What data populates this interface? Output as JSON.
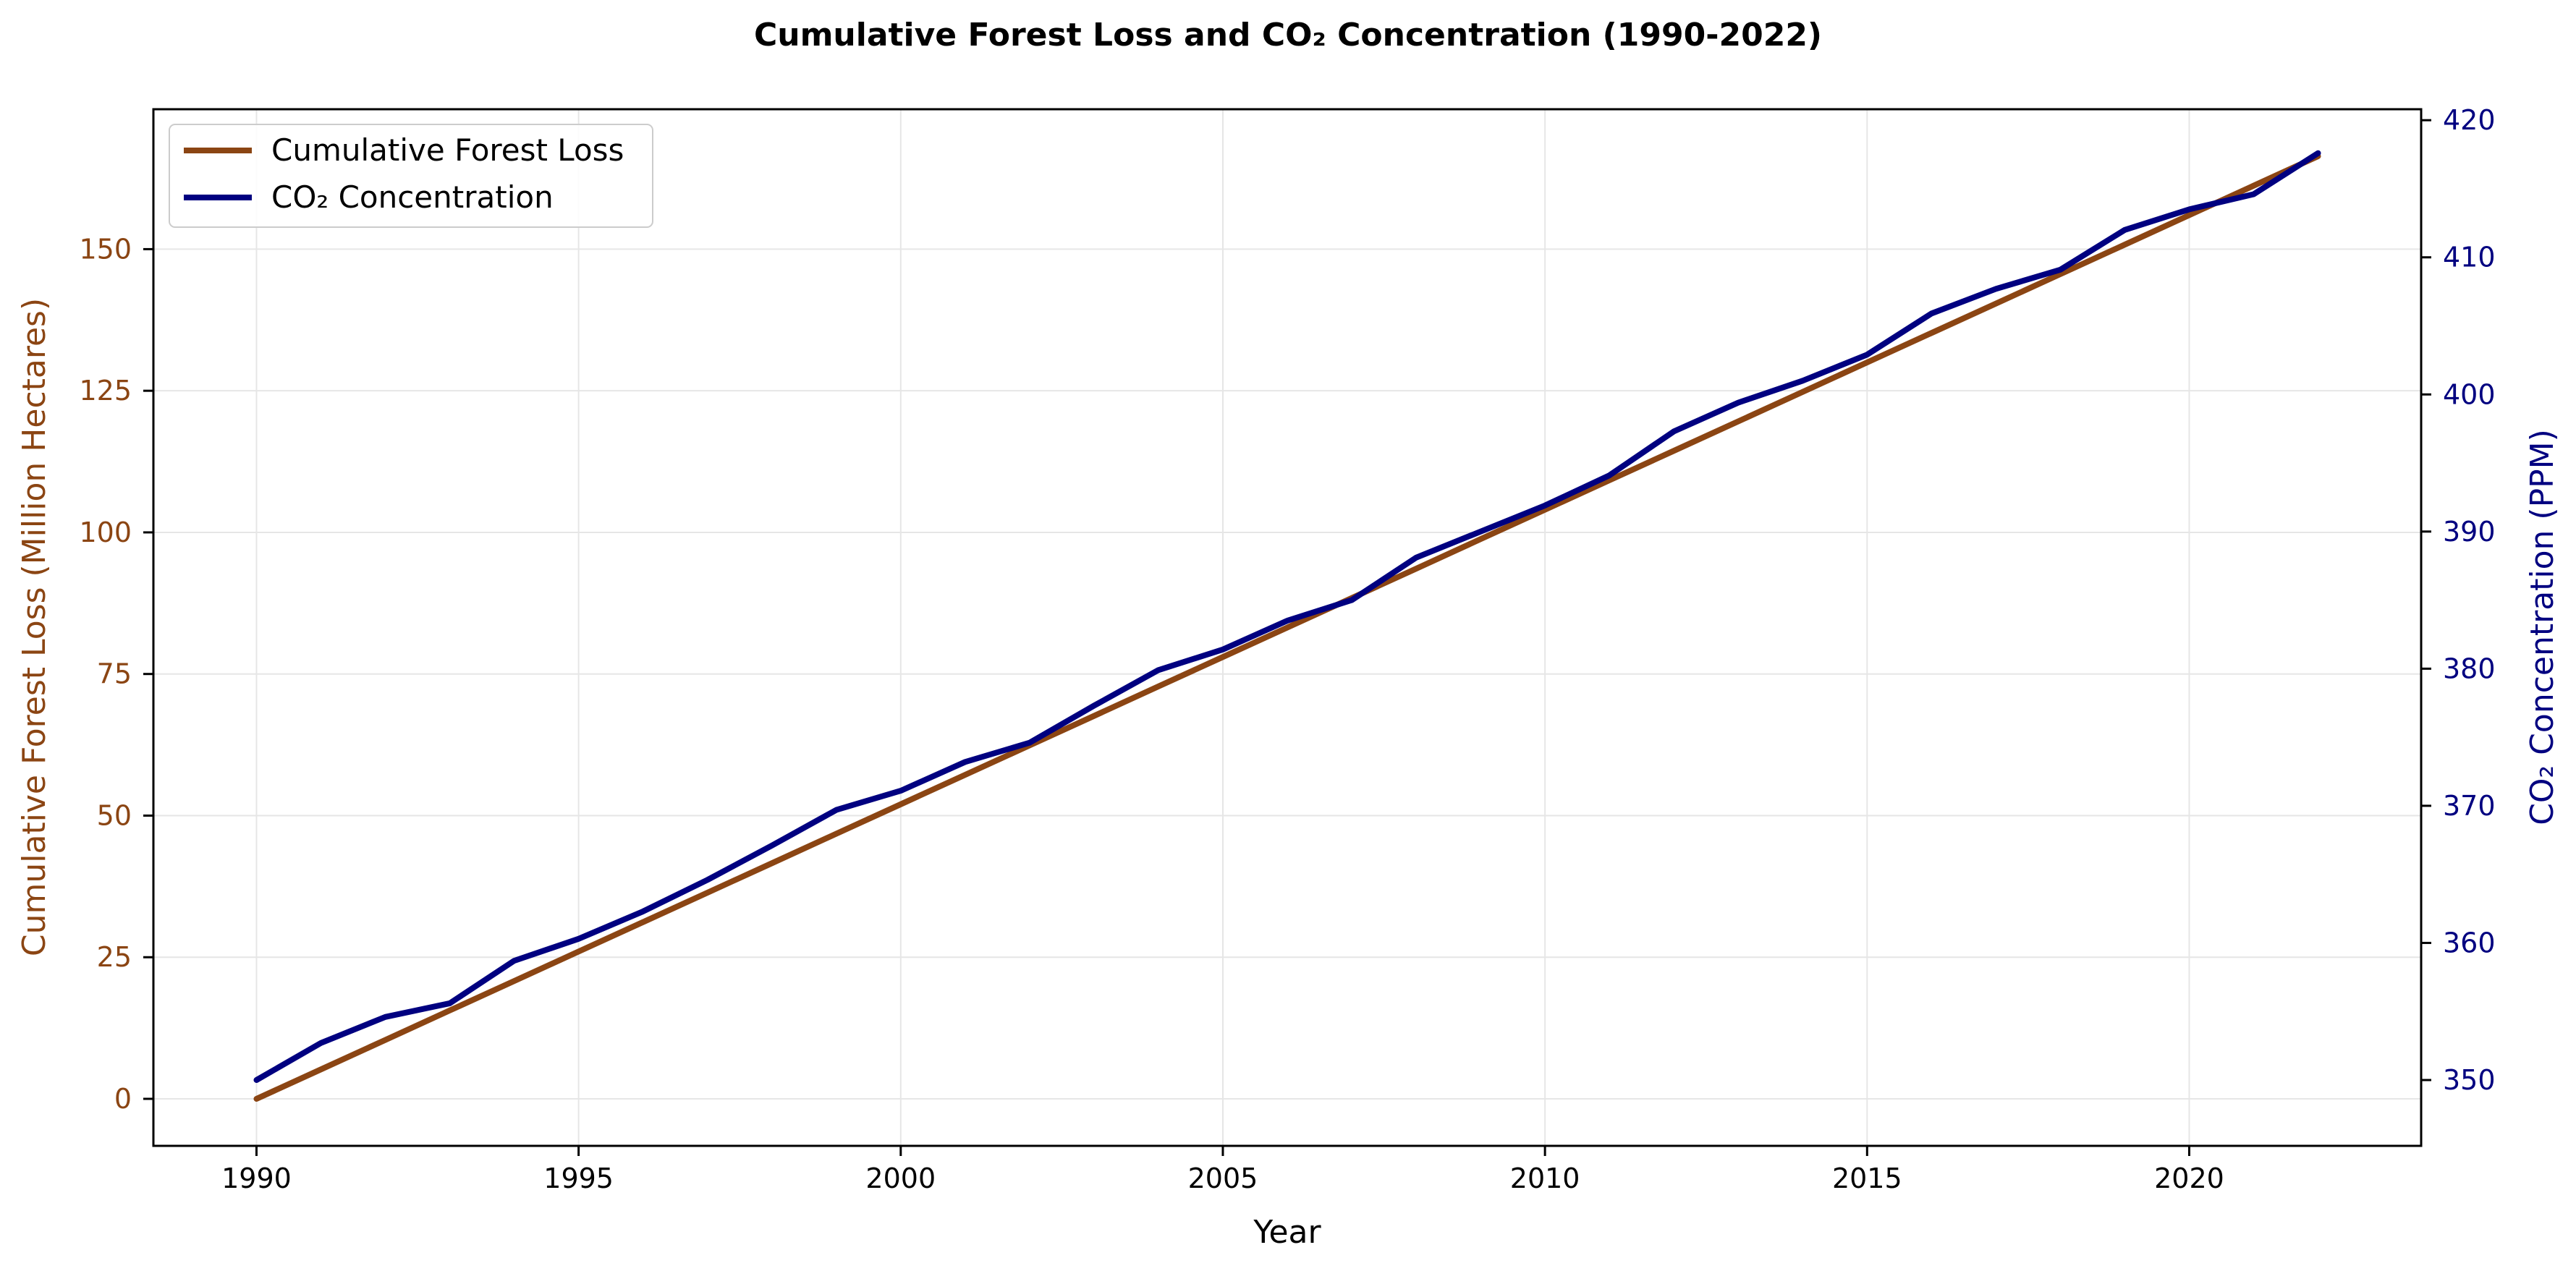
{
  "chart_data": {
    "type": "line",
    "title": "Cumulative Forest Loss and CO₂ Concentration (1990-2022)",
    "xlabel": "Year",
    "ylabel_left": "Cumulative Forest Loss (Million Hectares)",
    "ylabel_right": "CO₂ Concentration (PPM)",
    "xlim": [
      1988.4,
      2023.6
    ],
    "ylim_left": [
      -8.3,
      174.7
    ],
    "ylim_right": [
      345.2,
      420.8
    ],
    "xticks": [
      1990,
      1995,
      2000,
      2005,
      2010,
      2015,
      2020
    ],
    "yticks_left": [
      0,
      25,
      50,
      75,
      100,
      125,
      150
    ],
    "yticks_right": [
      350,
      360,
      370,
      380,
      390,
      400,
      410,
      420
    ],
    "grid": true,
    "legend_position": "top-left",
    "x": [
      1990,
      1991,
      1992,
      1993,
      1994,
      1995,
      1996,
      1997,
      1998,
      1999,
      2000,
      2001,
      2002,
      2003,
      2004,
      2005,
      2006,
      2007,
      2008,
      2009,
      2010,
      2011,
      2012,
      2013,
      2014,
      2015,
      2016,
      2017,
      2018,
      2019,
      2020,
      2021,
      2022
    ],
    "series": [
      {
        "name": "Cumulative Forest Loss",
        "axis": "left",
        "color": "#8B4513",
        "values": [
          0,
          5.2,
          10.4,
          15.6,
          20.8,
          26.0,
          31.2,
          36.4,
          41.6,
          46.8,
          52.0,
          57.2,
          62.4,
          67.6,
          72.8,
          78.0,
          83.2,
          88.4,
          93.6,
          98.8,
          104.0,
          109.2,
          114.4,
          119.6,
          124.8,
          130.0,
          135.2,
          140.4,
          145.6,
          150.8,
          156.0,
          161.2,
          166.4
        ]
      },
      {
        "name": "CO₂ Concentration",
        "axis": "right",
        "color": "#000080",
        "values": [
          350.0,
          352.7,
          354.6,
          355.6,
          358.7,
          360.3,
          362.3,
          364.6,
          367.1,
          369.7,
          371.1,
          373.2,
          374.6,
          377.3,
          379.9,
          381.4,
          383.5,
          385.0,
          388.1,
          390.0,
          391.9,
          394.1,
          397.3,
          399.4,
          401.0,
          402.9,
          405.9,
          407.7,
          409.1,
          412.0,
          413.5,
          414.6,
          417.6
        ]
      }
    ]
  }
}
